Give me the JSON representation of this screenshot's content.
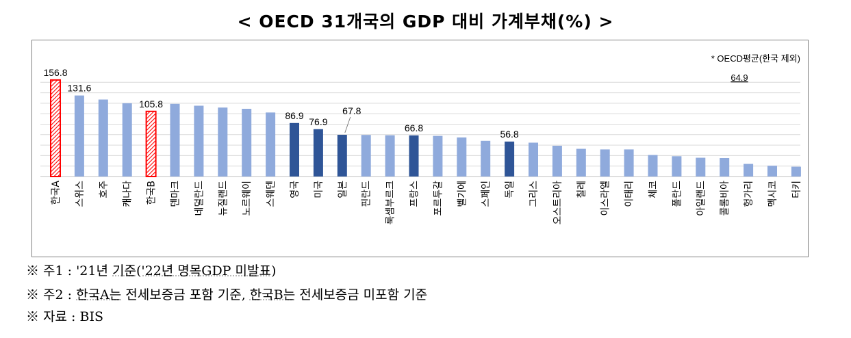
{
  "title": "< OECD 31개국의 GDP 대비 가계부채(%) >",
  "chart_data": {
    "type": "bar",
    "title": "OECD 31개국의 GDP 대비 가계부채(%)",
    "ylim": [
      0,
      170
    ],
    "categories": [
      "한국A",
      "스위스",
      "호주",
      "캐나다",
      "한국B",
      "덴마크",
      "네덜란드",
      "뉴질랜드",
      "노르웨이",
      "스웨덴",
      "영국",
      "미국",
      "일본",
      "핀란드",
      "룩셈부르크",
      "프랑스",
      "포르투갈",
      "벨기에",
      "스페인",
      "독일",
      "그리스",
      "오스트리아",
      "칠레",
      "이스라엘",
      "이태리",
      "체코",
      "폴란드",
      "아일랜드",
      "콜롬비아",
      "헝가리",
      "멕시코",
      "터키"
    ],
    "values": [
      156.8,
      131.6,
      125.0,
      119.0,
      105.8,
      118.0,
      115.0,
      112.0,
      110.0,
      104.0,
      86.9,
      76.9,
      67.8,
      67.5,
      67.0,
      66.8,
      66.0,
      63.5,
      58.0,
      56.8,
      55.0,
      50.0,
      45.0,
      44.0,
      44.0,
      35.0,
      33.0,
      30.5,
      30.0,
      20.5,
      17.5,
      16.0
    ],
    "kinds": [
      "korea-hatched",
      "normal",
      "normal",
      "normal",
      "korea-hatched",
      "normal",
      "normal",
      "normal",
      "normal",
      "normal",
      "highlight",
      "highlight",
      "highlight",
      "normal",
      "normal",
      "highlight",
      "normal",
      "normal",
      "normal",
      "highlight",
      "normal",
      "normal",
      "normal",
      "normal",
      "normal",
      "normal",
      "normal",
      "normal",
      "normal",
      "normal",
      "normal",
      "normal"
    ],
    "data_labels": {
      "0": "156.8",
      "1": "131.6",
      "4": "105.8",
      "10": "86.9",
      "11": "76.9",
      "12": "67.8",
      "15": "66.8",
      "19": "56.8"
    },
    "oecd_average": {
      "label": "* OECD평균(한국 제외)",
      "value": "64.9"
    },
    "colors": {
      "normal": "#8faadc",
      "highlight": "#2f5597",
      "korea": "#ff0000",
      "gridline": "#d9d9d9",
      "axis": "#bfbfbf"
    }
  },
  "notes": {
    "note1": {
      "prefix": "※ 주1 : '21년 ",
      "mid": "기준('22년 명목GDP 미발표)"
    },
    "note2": {
      "prefix": "※ 주2 : ",
      "a": "한국A는",
      "mid": " 전세보증금 포함 기준, ",
      "b": "한국B는",
      "end": " 전세보증금 미포함 기준"
    },
    "note3": {
      "text": "※ 자료 : BIS"
    }
  }
}
